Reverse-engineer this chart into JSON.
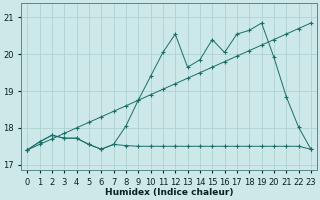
{
  "bg_color": "#cce8e8",
  "line_color": "#1a6e68",
  "grid_color": "#aacece",
  "xlabel": "Humidex (Indice chaleur)",
  "xlim": [
    -0.5,
    23.5
  ],
  "ylim": [
    16.85,
    21.4
  ],
  "yticks": [
    17,
    18,
    19,
    20,
    21
  ],
  "xticks": [
    0,
    1,
    2,
    3,
    4,
    5,
    6,
    7,
    8,
    9,
    10,
    11,
    12,
    13,
    14,
    15,
    16,
    17,
    18,
    19,
    20,
    21,
    22,
    23
  ],
  "x": [
    0,
    1,
    2,
    3,
    4,
    5,
    6,
    7,
    8,
    9,
    10,
    11,
    12,
    13,
    14,
    15,
    16,
    17,
    18,
    19,
    20,
    21,
    22,
    23
  ],
  "y_flat": [
    17.4,
    17.62,
    17.8,
    17.72,
    17.72,
    17.55,
    17.42,
    17.55,
    17.52,
    17.5,
    17.5,
    17.5,
    17.5,
    17.5,
    17.5,
    17.5,
    17.5,
    17.5,
    17.5,
    17.5,
    17.5,
    17.5,
    17.5,
    17.42
  ],
  "y_diag": [
    17.4,
    17.55,
    17.7,
    17.85,
    18.0,
    18.15,
    18.3,
    18.45,
    18.6,
    18.75,
    18.9,
    19.05,
    19.2,
    19.35,
    19.5,
    19.65,
    19.8,
    19.95,
    20.1,
    20.25,
    20.4,
    20.55,
    20.7,
    20.85
  ],
  "y_zigzag": [
    17.4,
    17.62,
    17.8,
    17.72,
    17.72,
    17.55,
    17.42,
    17.55,
    18.05,
    18.75,
    19.4,
    20.05,
    20.55,
    19.65,
    19.85,
    20.4,
    20.05,
    20.55,
    20.65,
    20.85,
    19.92,
    18.85,
    18.02,
    17.42
  ]
}
